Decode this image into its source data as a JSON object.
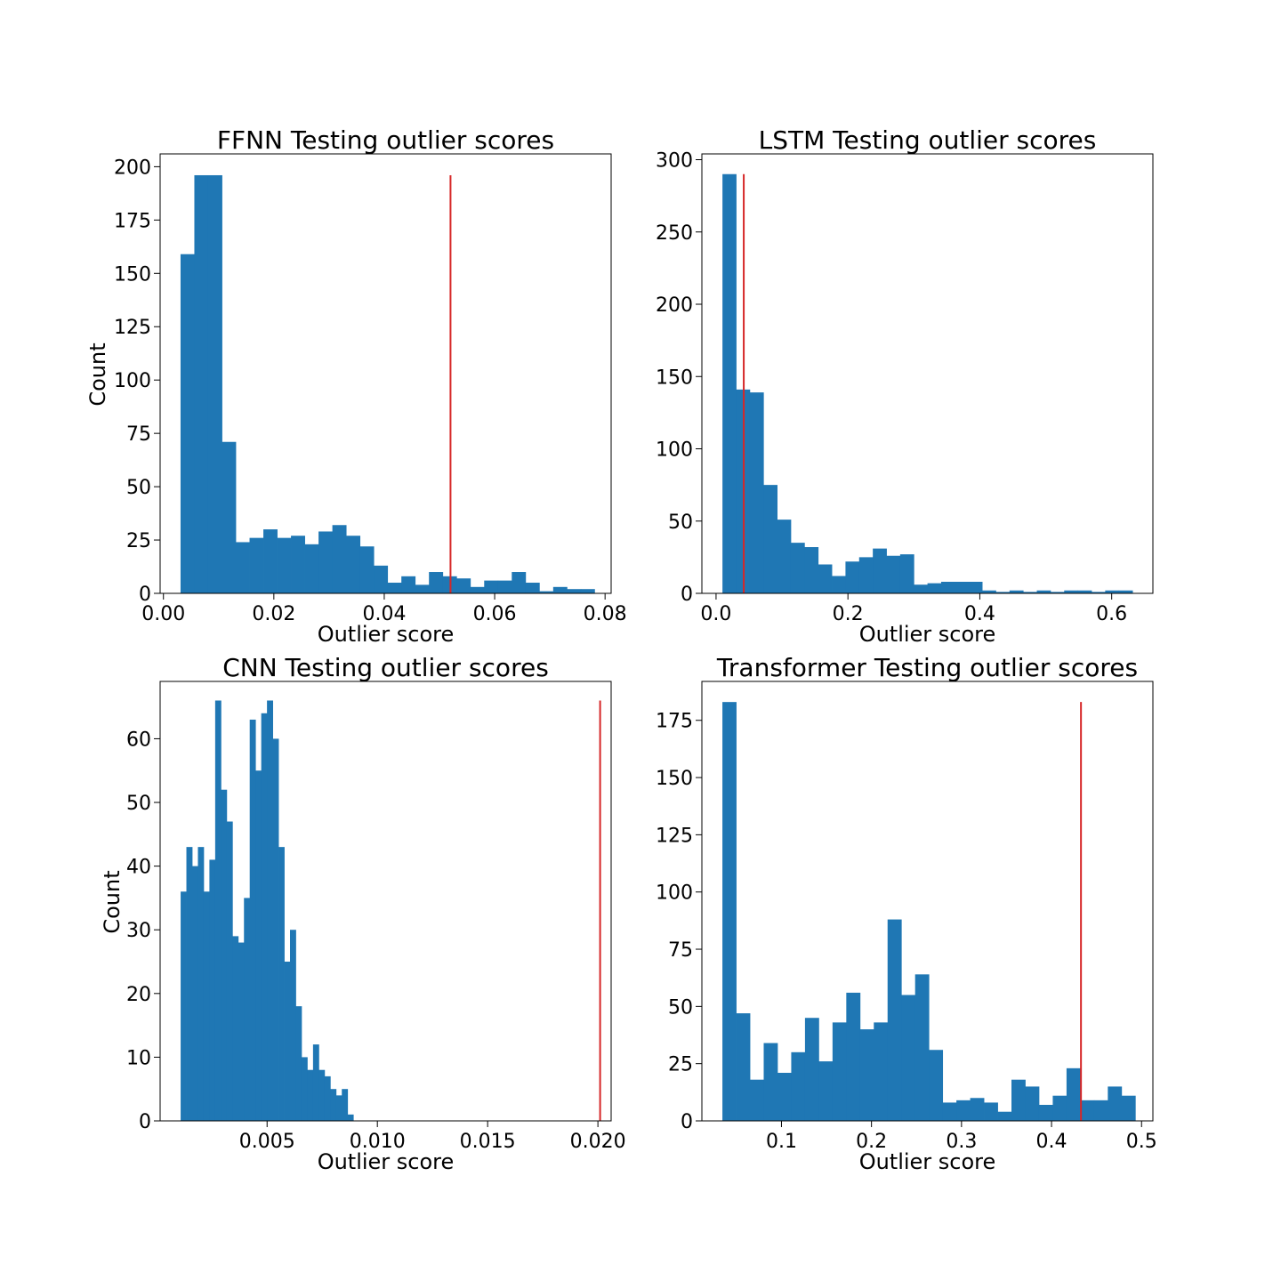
{
  "figure": {
    "bar_color": "#1f77b4",
    "threshold_color": "#d62728"
  },
  "chart_data": [
    {
      "type": "bar",
      "title": "FFNN Testing outlier scores",
      "xlabel": "Outlier score",
      "ylabel": "Count",
      "xlim": [
        -0.0006,
        0.0811
      ],
      "ylim": [
        0,
        206
      ],
      "xticks": [
        0.0,
        0.02,
        0.04,
        0.06,
        0.08
      ],
      "xtick_labels": [
        "0.00",
        "0.02",
        "0.04",
        "0.06",
        "0.08"
      ],
      "yticks": [
        0,
        25,
        50,
        75,
        100,
        125,
        150,
        175,
        200
      ],
      "ytick_labels": [
        "0",
        "25",
        "50",
        "75",
        "100",
        "125",
        "150",
        "175",
        "200"
      ],
      "bin_start": 0.0031,
      "bin_width": 0.0025,
      "values": [
        159,
        196,
        196,
        71,
        24,
        26,
        30,
        26,
        27,
        23,
        29,
        32,
        27,
        22,
        13,
        5,
        8,
        4,
        10,
        8,
        7,
        3,
        6,
        6,
        10,
        5,
        1,
        3,
        2,
        2
      ],
      "threshold": 0.052
    },
    {
      "type": "bar",
      "title": "LSTM Testing outlier scores",
      "xlabel": "Outlier score",
      "ylabel": "",
      "xlim": [
        -0.0215,
        0.6625
      ],
      "ylim": [
        0,
        304
      ],
      "xticks": [
        0.0,
        0.2,
        0.4,
        0.6
      ],
      "xtick_labels": [
        "0.0",
        "0.2",
        "0.4",
        "0.6"
      ],
      "yticks": [
        0,
        50,
        100,
        150,
        200,
        250,
        300
      ],
      "ytick_labels": [
        "0",
        "50",
        "100",
        "150",
        "200",
        "250",
        "300"
      ],
      "bin_start": 0.0097,
      "bin_width": 0.02073,
      "values": [
        290,
        141,
        139,
        75,
        51,
        35,
        32,
        20,
        12,
        22,
        25,
        31,
        26,
        27,
        6,
        7,
        8,
        8,
        8,
        2,
        1,
        2,
        1,
        2,
        1,
        2,
        2,
        1,
        2,
        2
      ],
      "threshold": 0.042
    },
    {
      "type": "bar",
      "title": "CNN Testing outlier scores",
      "xlabel": "Outlier score",
      "ylabel": "Count",
      "xlim": [
        0.00015,
        0.0206
      ],
      "ylim": [
        0,
        69
      ],
      "xticks": [
        0.005,
        0.01,
        0.015,
        0.02
      ],
      "xtick_labels": [
        "0.005",
        "0.010",
        "0.015",
        "0.020"
      ],
      "yticks": [
        0,
        10,
        20,
        30,
        40,
        50,
        60
      ],
      "ytick_labels": [
        "0",
        "10",
        "20",
        "30",
        "40",
        "50",
        "60"
      ],
      "bin_start": 0.00108,
      "bin_width": 0.000261,
      "values": [
        36,
        43,
        40,
        43,
        36,
        41,
        66,
        52,
        47,
        29,
        28,
        35,
        63,
        55,
        64,
        66,
        60,
        43,
        25,
        30,
        18,
        10,
        8,
        12,
        8,
        7,
        5,
        4,
        5,
        1
      ],
      "threshold": 0.0201
    },
    {
      "type": "bar",
      "title": "Transformer Testing outlier scores",
      "xlabel": "Outlier score",
      "ylabel": "",
      "xlim": [
        0.0116,
        0.5126
      ],
      "ylim": [
        0,
        192
      ],
      "xticks": [
        0.1,
        0.2,
        0.3,
        0.4,
        0.5
      ],
      "xtick_labels": [
        "0.1",
        "0.2",
        "0.3",
        "0.4",
        "0.5"
      ],
      "yticks": [
        0,
        25,
        50,
        75,
        100,
        125,
        150,
        175
      ],
      "ytick_labels": [
        "0",
        "25",
        "50",
        "75",
        "100",
        "125",
        "150",
        "175"
      ],
      "bin_start": 0.0344,
      "bin_width": 0.01529,
      "values": [
        183,
        47,
        18,
        34,
        21,
        30,
        45,
        26,
        43,
        56,
        40,
        43,
        88,
        55,
        64,
        31,
        8,
        9,
        10,
        8,
        4,
        18,
        15,
        7,
        11,
        23,
        9,
        9,
        15,
        11
      ],
      "threshold": 0.4327
    }
  ]
}
